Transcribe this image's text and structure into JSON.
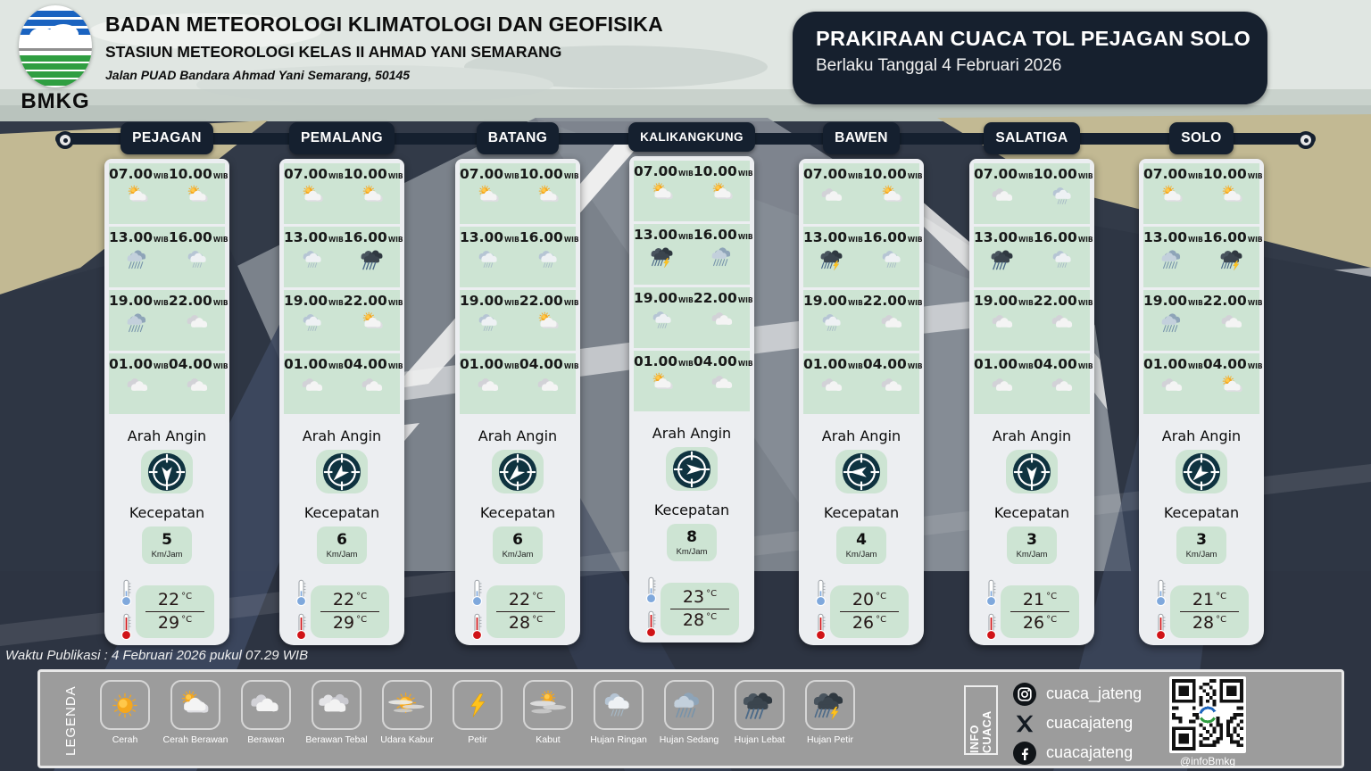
{
  "header": {
    "agency": "BADAN METEOROLOGI KLIMATOLOGI DAN GEOFISIKA",
    "station": "STASIUN METEOROLOGI KELAS II AHMAD YANI SEMARANG",
    "address": "Jalan PUAD Bandara Ahmad Yani Semarang, 50145",
    "logo_text": "BMKG"
  },
  "title_box": {
    "title": "PRAKIRAAN CUACA TOL PEJAGAN SOLO",
    "subtitle": "Berlaku Tanggal  4 Februari 2026"
  },
  "labels": {
    "wind_direction": "Arah Angin",
    "speed": "Kecepatan",
    "speed_unit": "Km/Jam",
    "time_suffix": "WIB",
    "temp_unit": "°C"
  },
  "publication": "Waktu Publikasi : 4 Februari 2026 pukul 07.29 WIB",
  "stations": [
    {
      "name": "PEJAGAN",
      "wind_deg": 180,
      "speed": "5",
      "temp_min": "22",
      "temp_max": "29",
      "forecasts": [
        {
          "time": "07.00",
          "icon": "cerah-berawan"
        },
        {
          "time": "10.00",
          "icon": "cerah-berawan"
        },
        {
          "time": "13.00",
          "icon": "hujan-sedang"
        },
        {
          "time": "16.00",
          "icon": "hujan-ringan"
        },
        {
          "time": "19.00",
          "icon": "hujan-sedang"
        },
        {
          "time": "22.00",
          "icon": "berawan"
        },
        {
          "time": "01.00",
          "icon": "berawan"
        },
        {
          "time": "04.00",
          "icon": "berawan"
        }
      ]
    },
    {
      "name": "PEMALANG",
      "wind_deg": 225,
      "speed": "6",
      "temp_min": "22",
      "temp_max": "29",
      "forecasts": [
        {
          "time": "07.00",
          "icon": "cerah-berawan"
        },
        {
          "time": "10.00",
          "icon": "cerah-berawan"
        },
        {
          "time": "13.00",
          "icon": "hujan-ringan"
        },
        {
          "time": "16.00",
          "icon": "hujan-lebat"
        },
        {
          "time": "19.00",
          "icon": "hujan-ringan"
        },
        {
          "time": "22.00",
          "icon": "cerah-berawan"
        },
        {
          "time": "01.00",
          "icon": "berawan"
        },
        {
          "time": "04.00",
          "icon": "berawan"
        }
      ]
    },
    {
      "name": "BATANG",
      "wind_deg": 225,
      "speed": "6",
      "temp_min": "22",
      "temp_max": "28",
      "forecasts": [
        {
          "time": "07.00",
          "icon": "cerah-berawan"
        },
        {
          "time": "10.00",
          "icon": "cerah-berawan"
        },
        {
          "time": "13.00",
          "icon": "hujan-ringan"
        },
        {
          "time": "16.00",
          "icon": "hujan-ringan"
        },
        {
          "time": "19.00",
          "icon": "hujan-ringan"
        },
        {
          "time": "22.00",
          "icon": "cerah-berawan"
        },
        {
          "time": "01.00",
          "icon": "berawan"
        },
        {
          "time": "04.00",
          "icon": "berawan"
        }
      ]
    },
    {
      "name": "KALIKANGKUNG",
      "wind_deg": 90,
      "speed": "8",
      "temp_min": "23",
      "temp_max": "28",
      "forecasts": [
        {
          "time": "07.00",
          "icon": "cerah-berawan"
        },
        {
          "time": "10.00",
          "icon": "cerah-berawan"
        },
        {
          "time": "13.00",
          "icon": "hujan-petir"
        },
        {
          "time": "16.00",
          "icon": "hujan-sedang"
        },
        {
          "time": "19.00",
          "icon": "hujan-ringan"
        },
        {
          "time": "22.00",
          "icon": "berawan"
        },
        {
          "time": "01.00",
          "icon": "cerah-berawan"
        },
        {
          "time": "04.00",
          "icon": "berawan"
        }
      ]
    },
    {
      "name": "BAWEN",
      "wind_deg": 270,
      "speed": "4",
      "temp_min": "20",
      "temp_max": "26",
      "forecasts": [
        {
          "time": "07.00",
          "icon": "berawan"
        },
        {
          "time": "10.00",
          "icon": "cerah-berawan"
        },
        {
          "time": "13.00",
          "icon": "hujan-petir"
        },
        {
          "time": "16.00",
          "icon": "hujan-ringan"
        },
        {
          "time": "19.00",
          "icon": "hujan-ringan"
        },
        {
          "time": "22.00",
          "icon": "berawan"
        },
        {
          "time": "01.00",
          "icon": "berawan"
        },
        {
          "time": "04.00",
          "icon": "berawan"
        }
      ]
    },
    {
      "name": "SALATIGA",
      "wind_deg": 180,
      "speed": "3",
      "temp_min": "21",
      "temp_max": "26",
      "forecasts": [
        {
          "time": "07.00",
          "icon": "berawan"
        },
        {
          "time": "10.00",
          "icon": "hujan-ringan"
        },
        {
          "time": "13.00",
          "icon": "hujan-lebat"
        },
        {
          "time": "16.00",
          "icon": "hujan-ringan"
        },
        {
          "time": "19.00",
          "icon": "berawan"
        },
        {
          "time": "22.00",
          "icon": "berawan"
        },
        {
          "time": "01.00",
          "icon": "berawan"
        },
        {
          "time": "04.00",
          "icon": "berawan"
        }
      ]
    },
    {
      "name": "SOLO",
      "wind_deg": 225,
      "speed": "3",
      "temp_min": "21",
      "temp_max": "28",
      "forecasts": [
        {
          "time": "07.00",
          "icon": "cerah-berawan"
        },
        {
          "time": "10.00",
          "icon": "cerah-berawan"
        },
        {
          "time": "13.00",
          "icon": "hujan-sedang"
        },
        {
          "time": "16.00",
          "icon": "hujan-petir"
        },
        {
          "time": "19.00",
          "icon": "hujan-sedang"
        },
        {
          "time": "22.00",
          "icon": "berawan"
        },
        {
          "time": "01.00",
          "icon": "berawan"
        },
        {
          "time": "04.00",
          "icon": "cerah-berawan"
        }
      ]
    }
  ],
  "legend": {
    "title": "LEGENDA",
    "items": [
      {
        "label": "Cerah",
        "icon": "cerah"
      },
      {
        "label": "Cerah Berawan",
        "icon": "cerah-berawan"
      },
      {
        "label": "Berawan",
        "icon": "berawan"
      },
      {
        "label": "Berawan Tebal",
        "icon": "berawan-tebal"
      },
      {
        "label": "Udara Kabur",
        "icon": "udara-kabur"
      },
      {
        "label": "Petir",
        "icon": "petir"
      },
      {
        "label": "Kabut",
        "icon": "kabut"
      },
      {
        "label": "Hujan Ringan",
        "icon": "hujan-ringan"
      },
      {
        "label": "Hujan Sedang",
        "icon": "hujan-sedang"
      },
      {
        "label": "Hujan Lebat",
        "icon": "hujan-lebat"
      },
      {
        "label": "Hujan Petir",
        "icon": "hujan-petir"
      }
    ]
  },
  "info": {
    "title": "INFO CUACA",
    "socials": [
      {
        "network": "instagram",
        "handle": "cuaca_jateng"
      },
      {
        "network": "x",
        "handle": "cuacajateng"
      },
      {
        "network": "facebook",
        "handle": "cuacajateng"
      }
    ],
    "qr_caption": "@infoBmkg"
  },
  "colors": {
    "navy": "#15202f",
    "cell_green": "#cde4d3",
    "card_bg": "#eceef1",
    "legend_gray": "#9c9c9c",
    "compass_bg": "#0f3340",
    "sun": "#F5A71D"
  }
}
